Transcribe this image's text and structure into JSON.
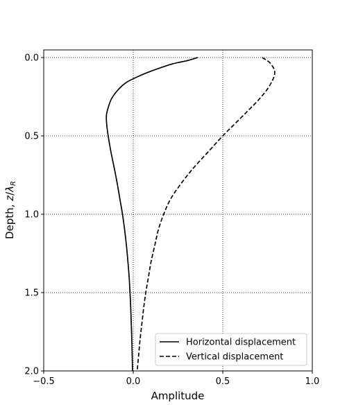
{
  "chart_data": {
    "type": "line",
    "title": "",
    "xlabel": "Amplitude",
    "ylabel": "Depth, z/λR",
    "ylabel_parts": {
      "text": "Depth, ",
      "z": "z",
      "slash": "/",
      "lambda": "λ",
      "sub": "R"
    },
    "xlim": [
      -0.5,
      1.0
    ],
    "ylim": [
      2.0,
      0.0
    ],
    "y_inverted": true,
    "xticks": [
      -0.5,
      0.0,
      0.5,
      1.0
    ],
    "xtick_labels": [
      "−0.5",
      "0.0",
      "0.5",
      "1.0"
    ],
    "yticks": [
      0.0,
      0.5,
      1.0,
      1.5,
      2.0
    ],
    "ytick_labels": [
      "0.0",
      "0.5",
      "1.0",
      "1.5",
      "2.0"
    ],
    "grid": true,
    "grid_style": "dotted",
    "legend_position": "lower-right",
    "series": [
      {
        "name": "Horizontal displacement",
        "style": "solid",
        "color": "#000000",
        "points": [
          [
            0.36,
            0.0
          ],
          [
            0.3,
            0.02
          ],
          [
            0.22,
            0.04
          ],
          [
            0.14,
            0.07
          ],
          [
            0.07,
            0.1
          ],
          [
            0.01,
            0.13
          ],
          [
            -0.04,
            0.16
          ],
          [
            -0.08,
            0.2
          ],
          [
            -0.12,
            0.26
          ],
          [
            -0.14,
            0.32
          ],
          [
            -0.15,
            0.37
          ],
          [
            -0.148,
            0.43
          ],
          [
            -0.14,
            0.5
          ],
          [
            -0.125,
            0.6
          ],
          [
            -0.107,
            0.7
          ],
          [
            -0.09,
            0.8
          ],
          [
            -0.075,
            0.9
          ],
          [
            -0.06,
            1.0
          ],
          [
            -0.048,
            1.1
          ],
          [
            -0.038,
            1.2
          ],
          [
            -0.03,
            1.3
          ],
          [
            -0.023,
            1.4
          ],
          [
            -0.018,
            1.5
          ],
          [
            -0.014,
            1.6
          ],
          [
            -0.011,
            1.7
          ],
          [
            -0.008,
            1.8
          ],
          [
            -0.006,
            1.9
          ],
          [
            -0.004,
            2.0
          ]
        ]
      },
      {
        "name": "Vertical displacement",
        "style": "dashed",
        "color": "#000000",
        "points": [
          [
            0.72,
            0.0
          ],
          [
            0.76,
            0.03
          ],
          [
            0.785,
            0.07
          ],
          [
            0.79,
            0.1
          ],
          [
            0.78,
            0.14
          ],
          [
            0.75,
            0.2
          ],
          [
            0.7,
            0.27
          ],
          [
            0.64,
            0.34
          ],
          [
            0.57,
            0.42
          ],
          [
            0.5,
            0.5
          ],
          [
            0.42,
            0.6
          ],
          [
            0.34,
            0.7
          ],
          [
            0.27,
            0.8
          ],
          [
            0.21,
            0.9
          ],
          [
            0.17,
            1.0
          ],
          [
            0.14,
            1.1
          ],
          [
            0.12,
            1.2
          ],
          [
            0.1,
            1.3
          ],
          [
            0.085,
            1.4
          ],
          [
            0.07,
            1.5
          ],
          [
            0.058,
            1.6
          ],
          [
            0.048,
            1.7
          ],
          [
            0.038,
            1.8
          ],
          [
            0.03,
            1.9
          ],
          [
            0.022,
            2.0
          ]
        ]
      }
    ]
  }
}
